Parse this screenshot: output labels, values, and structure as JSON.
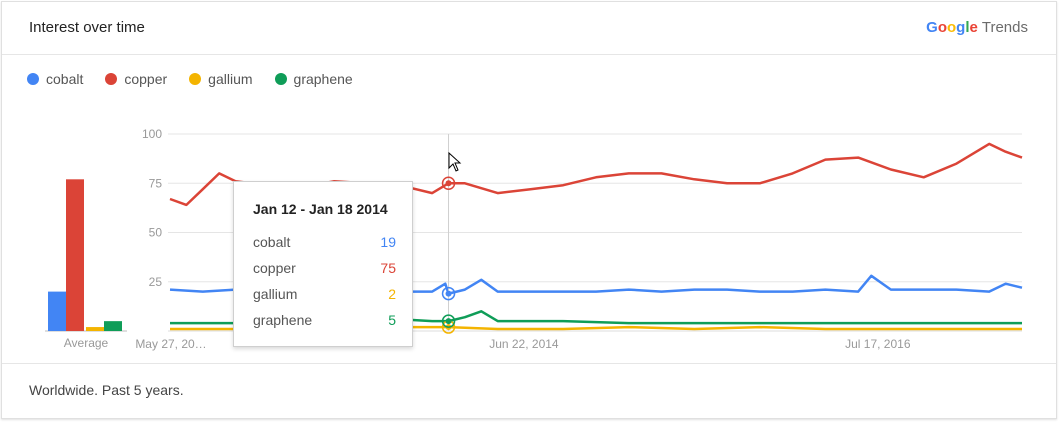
{
  "header": {
    "title": "Interest over time",
    "brand_google": [
      "G",
      "o",
      "o",
      "g",
      "l",
      "e"
    ],
    "brand_google_colors": [
      "#4285F4",
      "#EA4335",
      "#FBBC05",
      "#4285F4",
      "#34A853",
      "#EA4335"
    ],
    "brand_suffix": "Trends"
  },
  "legend": [
    {
      "label": "cobalt",
      "color": "#4285F4"
    },
    {
      "label": "copper",
      "color": "#DB4437"
    },
    {
      "label": "gallium",
      "color": "#F4B400"
    },
    {
      "label": "graphene",
      "color": "#0F9D58"
    }
  ],
  "tooltip": {
    "title": "Jan 12 - Jan 18 2014",
    "rows": [
      {
        "label": "cobalt",
        "value": "19",
        "color": "#4285F4"
      },
      {
        "label": "copper",
        "value": "75",
        "color": "#DB4437"
      },
      {
        "label": "gallium",
        "value": "2",
        "color": "#F4B400"
      },
      {
        "label": "graphene",
        "value": "5",
        "color": "#0F9D58"
      }
    ]
  },
  "footer": {
    "text": "Worldwide. Past 5 years."
  },
  "chart_data": [
    {
      "type": "bar",
      "categories": [
        "Average"
      ],
      "series": [
        {
          "name": "cobalt",
          "values": [
            20
          ]
        },
        {
          "name": "copper",
          "values": [
            77
          ]
        },
        {
          "name": "gallium",
          "values": [
            2
          ]
        },
        {
          "name": "graphene",
          "values": [
            5
          ]
        }
      ],
      "ylim": [
        0,
        100
      ]
    },
    {
      "type": "line",
      "ylim": [
        0,
        100
      ],
      "yticks": [
        "100",
        "75",
        "50",
        "25"
      ],
      "ytick_values": [
        100,
        75,
        50,
        25
      ],
      "xtick_labels": [
        "May 27, 20…",
        "Jun 22, 2014",
        "Jul 17, 2016"
      ],
      "xtick_weeks": [
        0,
        108,
        216
      ],
      "highlight_label": "Jan 12 - Jan 18 2014",
      "highlight_week": 85,
      "total_weeks": 260,
      "grid": true,
      "series": [
        {
          "name": "cobalt",
          "x": [
            0,
            10,
            20,
            30,
            40,
            50,
            60,
            64,
            70,
            80,
            84,
            85,
            90,
            95,
            100,
            110,
            120,
            130,
            140,
            150,
            160,
            170,
            180,
            190,
            200,
            210,
            214,
            220,
            230,
            240,
            250,
            255,
            260
          ],
          "y": [
            21,
            20,
            21,
            20,
            21,
            20,
            20,
            25,
            20,
            20,
            24,
            19,
            21,
            26,
            20,
            20,
            20,
            20,
            21,
            20,
            21,
            21,
            20,
            20,
            21,
            20,
            28,
            21,
            21,
            21,
            20,
            24,
            22
          ]
        },
        {
          "name": "copper",
          "x": [
            0,
            5,
            10,
            15,
            20,
            30,
            40,
            50,
            60,
            70,
            80,
            85,
            90,
            100,
            110,
            120,
            130,
            140,
            150,
            160,
            170,
            180,
            190,
            200,
            210,
            220,
            230,
            240,
            250,
            255,
            260
          ],
          "y": [
            67,
            64,
            72,
            80,
            76,
            74,
            73,
            76,
            75,
            74,
            70,
            75,
            75,
            70,
            72,
            74,
            78,
            80,
            80,
            77,
            75,
            75,
            80,
            87,
            88,
            82,
            78,
            85,
            95,
            91,
            88
          ]
        },
        {
          "name": "gallium",
          "x": [
            0,
            20,
            40,
            60,
            80,
            85,
            100,
            120,
            140,
            160,
            180,
            200,
            220,
            240,
            260
          ],
          "y": [
            1,
            1,
            2,
            2,
            2,
            2,
            1,
            1,
            2,
            1,
            2,
            1,
            1,
            1,
            1
          ]
        },
        {
          "name": "graphene",
          "x": [
            0,
            20,
            40,
            60,
            70,
            80,
            85,
            90,
            95,
            100,
            120,
            140,
            160,
            180,
            200,
            220,
            240,
            260
          ],
          "y": [
            4,
            4,
            5,
            5,
            6,
            5,
            5,
            7,
            10,
            5,
            5,
            4,
            4,
            4,
            4,
            4,
            4,
            4
          ]
        }
      ]
    }
  ]
}
